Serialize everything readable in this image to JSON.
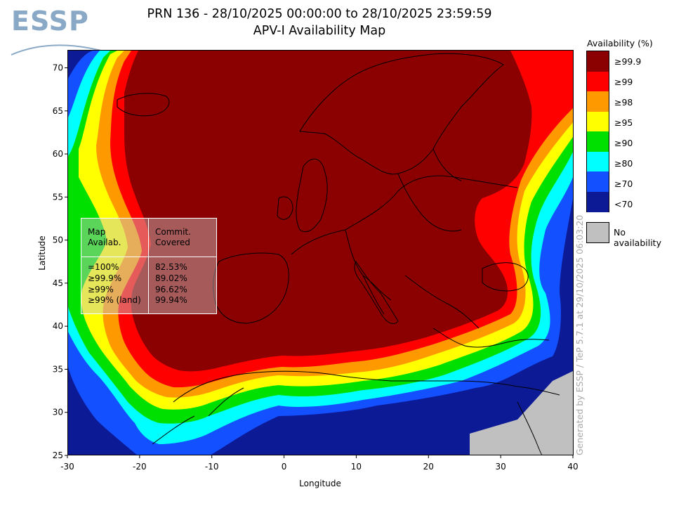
{
  "logo": {
    "text": "ESSP"
  },
  "title": {
    "line1": "PRN 136 - 28/10/2025 00:00:00 to 28/10/2025 23:59:59",
    "line2": "APV-I Availability Map"
  },
  "map": {
    "x_axis": {
      "label": "Longitude",
      "range": [
        -30,
        40
      ],
      "ticks": [
        "-30",
        "-20",
        "-10",
        "0",
        "10",
        "20",
        "30",
        "40"
      ]
    },
    "y_axis": {
      "label": "Latitude",
      "range": [
        25,
        72
      ],
      "ticks": [
        "25",
        "30",
        "35",
        "40",
        "45",
        "50",
        "55",
        "60",
        "65",
        "70"
      ]
    },
    "colors": {
      "lt70": "#0c1a96",
      "ge70": "#1350ff",
      "ge80": "#00ffff",
      "ge90": "#00e000",
      "ge95": "#ffff00",
      "ge98": "#ff9900",
      "ge99": "#ff0000",
      "ge99_9": "#8b0000",
      "no_availability": "#c0c0c0",
      "coast": "#000000"
    }
  },
  "stats_table": {
    "headers": [
      "Map\nAvailab.",
      "Commit.\nCovered"
    ],
    "rows": [
      {
        "availability": "=100%",
        "covered": "82.53%"
      },
      {
        "availability": "≥99.9%",
        "covered": "89.02%"
      },
      {
        "availability": "≥99%",
        "covered": "96.62%"
      },
      {
        "availability": "≥99% (land)",
        "covered": "99.94%"
      }
    ]
  },
  "legend": {
    "title": "Availability (%)",
    "items": [
      {
        "label": "≥99.9",
        "color": "#8b0000"
      },
      {
        "label": "≥99",
        "color": "#ff0000"
      },
      {
        "label": "≥98",
        "color": "#ff9900"
      },
      {
        "label": "≥95",
        "color": "#ffff00"
      },
      {
        "label": "≥90",
        "color": "#00e000"
      },
      {
        "label": "≥80",
        "color": "#00ffff"
      },
      {
        "label": "≥70",
        "color": "#1350ff"
      },
      {
        "label": "<70",
        "color": "#0c1a96"
      }
    ],
    "no_availability": {
      "label": "No availability",
      "color": "#c0c0c0"
    }
  },
  "credit": "Generated by ESSP / TeP 5.7.1 at 29/10/2025 06:03:20"
}
